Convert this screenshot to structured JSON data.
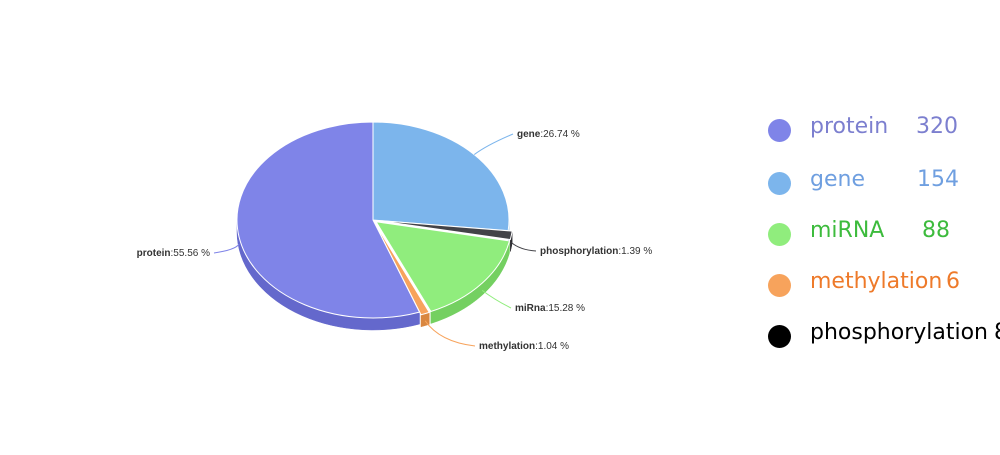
{
  "chart_data": {
    "type": "pie",
    "title": "",
    "slices": [
      {
        "name": "protein",
        "label": "protein",
        "value": 320,
        "percent_text": ":55.56 %",
        "color": "#7f84e8",
        "side_color": "#6468cc"
      },
      {
        "name": "gene",
        "label": "gene",
        "value": 154,
        "percent_text": ":26.74 %",
        "color": "#7cb5ec",
        "side_color": "#5f99d0"
      },
      {
        "name": "phosphorylation",
        "label": "phosphorylation",
        "value": 8,
        "percent_text": ":1.39 %",
        "color": "#434348",
        "side_color": "#2a2a2e"
      },
      {
        "name": "miRNA",
        "label": "miRna",
        "value": 88,
        "percent_text": ":15.28 %",
        "color": "#90ed7d",
        "side_color": "#74d061"
      },
      {
        "name": "methylation",
        "label": "methylation",
        "value": 6,
        "percent_text": ":1.04 %",
        "color": "#f7a35c",
        "side_color": "#d98740"
      }
    ]
  },
  "legend": {
    "items": [
      {
        "name": "protein",
        "count": "320",
        "dot_color": "#7f84e8",
        "text_color": "#7c7fcf"
      },
      {
        "name": "gene",
        "count": "154",
        "dot_color": "#7cb5ec",
        "text_color": "#6f9fe0"
      },
      {
        "name": "miRNA",
        "count": "88",
        "dot_color": "#90ed7d",
        "text_color": "#3dbb3d"
      },
      {
        "name": "methylation",
        "count": "6",
        "dot_color": "#f7a35c",
        "text_color": "#ee7a2a"
      },
      {
        "name": "phosphorylation",
        "count": "8",
        "dot_color": "#000000",
        "text_color": "#000000"
      }
    ]
  }
}
